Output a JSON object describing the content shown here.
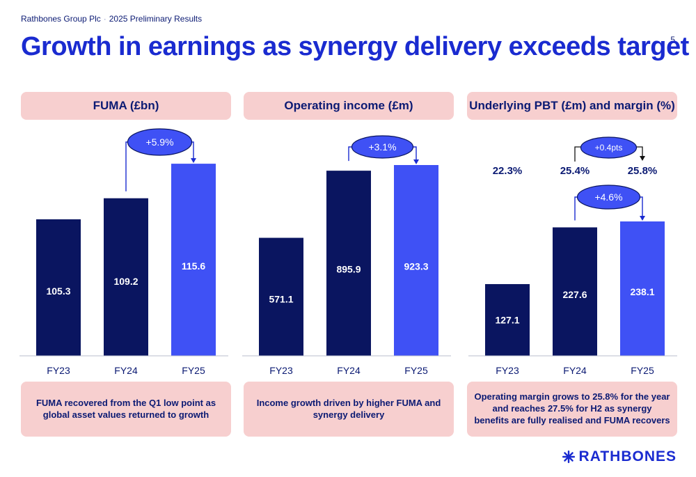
{
  "header": {
    "company": "Rathbones Group Plc",
    "separator": "·",
    "report": "2025 Preliminary Results",
    "page_number": "5",
    "title": "Growth in earnings as synergy delivery exceeds target"
  },
  "colors": {
    "dark_bar": "#0a1560",
    "light_bar": "#3f51f5",
    "accent": "#1a2bd0",
    "panel_bg": "#f7cfcf"
  },
  "chart_data": [
    {
      "type": "bar",
      "title": "FUMA (£bn)",
      "categories": [
        "FY23",
        "FY24",
        "FY25"
      ],
      "values": [
        105.3,
        109.2,
        115.6
      ],
      "value_labels": [
        "105.3",
        "109.2",
        "115.6"
      ],
      "change_label": "+5.9%",
      "footer": "FUMA recovered from the Q1 low point as global asset values returned to growth"
    },
    {
      "type": "bar",
      "title": "Operating income (£m)",
      "categories": [
        "FY23",
        "FY24",
        "FY25"
      ],
      "values": [
        571.1,
        895.9,
        923.3
      ],
      "value_labels": [
        "571.1",
        "895.9",
        "923.3"
      ],
      "change_label": "+3.1%",
      "footer": "Income growth driven by higher FUMA and synergy delivery"
    },
    {
      "type": "bar",
      "title": "Underlying PBT (£m) and margin (%)",
      "categories": [
        "FY23",
        "FY24",
        "FY25"
      ],
      "values": [
        127.1,
        227.6,
        238.1
      ],
      "value_labels": [
        "127.1",
        "227.6",
        "238.1"
      ],
      "margins": [
        "22.3%",
        "25.4%",
        "25.8%"
      ],
      "margin_change_label": "+0.4pts",
      "change_label": "+4.6%",
      "footer": "Operating margin grows to 25.8% for the year and reaches 27.5% for H2 as synergy benefits are fully realised and FUMA recovers"
    }
  ],
  "logo": {
    "text": "RATHBONES",
    "icon": "rathbones-star-icon"
  }
}
